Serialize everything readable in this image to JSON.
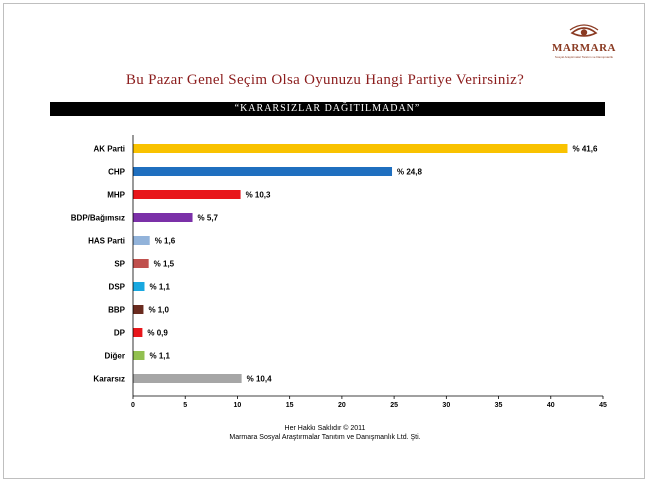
{
  "logo": {
    "name": "MARMARA",
    "tagline": "Sosyal Araştırmalar Tanıtım ve Danışmanlık",
    "icon": "eye-logo-icon"
  },
  "title": "Bu Pazar Genel Seçim Olsa Oyunuzu Hangi Partiye Verirsiniz?",
  "banner": "“KARARSIZLAR DAĞITILMADAN”",
  "chart_data": {
    "type": "bar",
    "orientation": "horizontal",
    "categories": [
      "AK Parti",
      "CHP",
      "MHP",
      "BDP/Bağımsız",
      "HAS Parti",
      "SP",
      "DSP",
      "BBP",
      "DP",
      "Diğer",
      "Kararsız"
    ],
    "values": [
      41.6,
      24.8,
      10.3,
      5.7,
      1.6,
      1.5,
      1.1,
      1.0,
      0.9,
      1.1,
      10.4
    ],
    "value_labels": [
      "% 41,6",
      "% 24,8",
      "% 10,3",
      "% 5,7",
      "% 1,6",
      "% 1,5",
      "% 1,1",
      "% 1,0",
      "% 0,9",
      "% 1,1",
      "% 10,4"
    ],
    "colors": [
      "#f9c200",
      "#1f6fbf",
      "#e8161b",
      "#7b30a8",
      "#92b3da",
      "#c0504d",
      "#18a8e0",
      "#6a2b1f",
      "#e8161b",
      "#92c050",
      "#a6a6a6"
    ],
    "xlim": [
      0,
      45
    ],
    "xticks": [
      0,
      5,
      10,
      15,
      20,
      25,
      30,
      35,
      40,
      45
    ],
    "title": "Bu Pazar Genel Seçim Olsa Oyunuzu Hangi Partiye Verirsiniz?",
    "xlabel": "",
    "ylabel": "",
    "grid": false,
    "legend": "none"
  },
  "footer": {
    "line1": "Her Hakkı Saklıdır © 2011",
    "line2": "Marmara Sosyal Araştırmalar Tanıtım ve Danışmanlık Ltd. Şti."
  }
}
